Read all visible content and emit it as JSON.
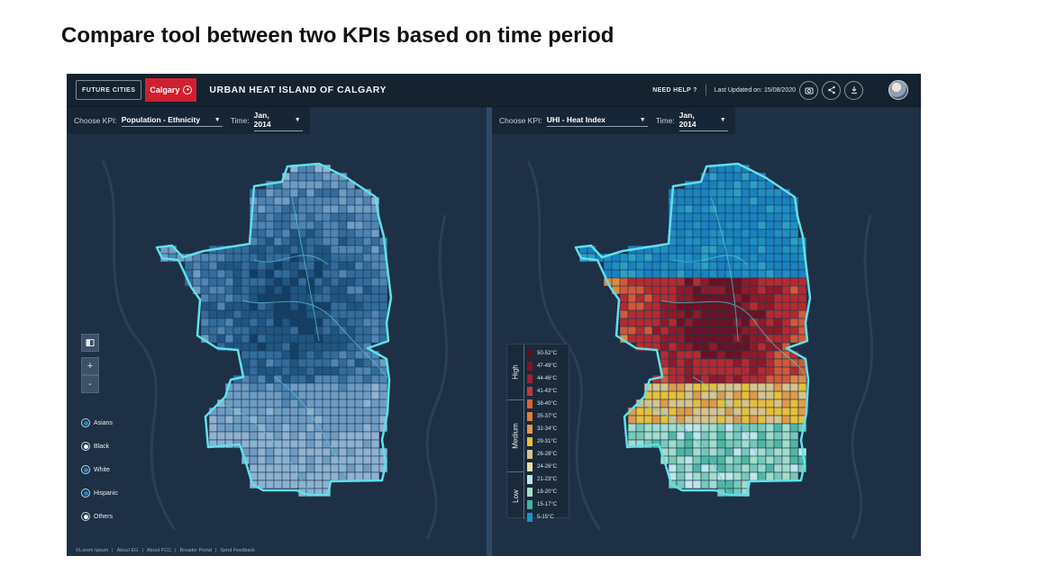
{
  "slide_title": "Compare tool between two KPIs based on time period",
  "header": {
    "logo_futurecities": "FUTURE CITIES",
    "logo_calgary": "Calgary",
    "title": "URBAN HEAT ISLAND OF CALGARY",
    "need_help": "NEED HELP ?",
    "last_updated": "Last Updated on: 15/08/2020",
    "icons": [
      "camera-icon",
      "share-icon",
      "download-icon"
    ]
  },
  "left_panel": {
    "kpi_label": "Choose KPI:",
    "kpi_value": "Population - Ethnicity",
    "time_label": "Time:",
    "time_value": "Jan, 2014",
    "layers_icon": "layers-icon",
    "zoom_in": "+",
    "zoom_out": "-",
    "ethnicities": [
      {
        "label": "Asians",
        "selected": true,
        "color": "#1d86c6"
      },
      {
        "label": "Black",
        "selected": false,
        "color": "#ffffff"
      },
      {
        "label": "White",
        "selected": true,
        "color": "#1d86c6"
      },
      {
        "label": "Hispanic",
        "selected": true,
        "color": "#1d86c6"
      },
      {
        "label": "Others",
        "selected": false,
        "color": "#ffffff"
      }
    ],
    "footer_links": [
      "©Lorem Ipsum",
      "About EG",
      "About FCC",
      "Broader Portal",
      "Send Feedback"
    ]
  },
  "right_panel": {
    "kpi_label": "Choose KPI:",
    "kpi_value": "UHI - Heat Index",
    "time_label": "Time:",
    "time_value": "Jan, 2014",
    "legend_levels": [
      "High",
      "Medium",
      "Low"
    ],
    "legend": [
      {
        "label": "50-52°C",
        "color": "#5a1020"
      },
      {
        "label": "47-49°C",
        "color": "#7e1526"
      },
      {
        "label": "44-46°C",
        "color": "#a11f2c"
      },
      {
        "label": "41-43°C",
        "color": "#c33a33"
      },
      {
        "label": "38-40°C",
        "color": "#d8633a"
      },
      {
        "label": "35-37°C",
        "color": "#df7d3c"
      },
      {
        "label": "32-34°C",
        "color": "#e29a48"
      },
      {
        "label": "29-31°C",
        "color": "#e7bf3a"
      },
      {
        "label": "26-28°C",
        "color": "#d9c38a"
      },
      {
        "label": "24-26°C",
        "color": "#e9e3a3"
      },
      {
        "label": "21-23°C",
        "color": "#bfe6ea"
      },
      {
        "label": "18-20°C",
        "color": "#a4dccb"
      },
      {
        "label": "15-17°C",
        "color": "#3eb59a"
      },
      {
        "label": "5-15°C",
        "color": "#1a93cc"
      }
    ]
  }
}
